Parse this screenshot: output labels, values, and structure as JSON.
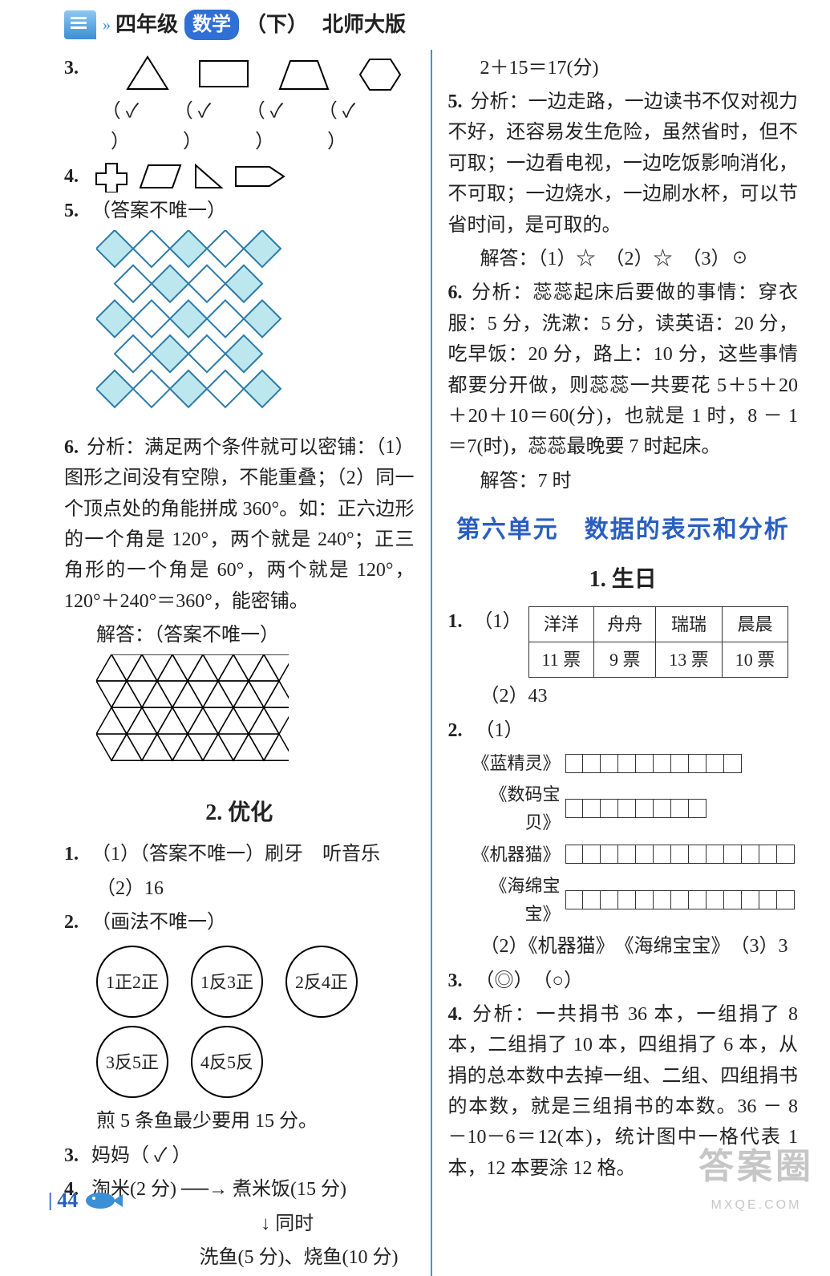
{
  "header": {
    "grade": "四年级",
    "subject": "数学",
    "volume": "（下）",
    "edition": "北师大版"
  },
  "left": {
    "q3": {
      "checks": [
        "（ ✓ ）",
        "（ ✓ ）",
        "（ ✓ ）",
        "（ ✓ ）"
      ]
    },
    "q5_note": "（答案不唯一）",
    "q5_pattern": {
      "rows": 5,
      "cols": 5,
      "cell": 46,
      "fill_color": "#bde7ee",
      "stroke": "#2b7aa8",
      "bg": "#ffffff"
    },
    "q6_analysis_label": "分析：",
    "q6_analysis": "满足两个条件就可以密铺：（1）图形之间没有空隙，不能重叠；（2）同一个顶点处的角能拼成 360°。如：正六边形的一个角是 120°，两个就是 240°；正三角形的一个角是 60°，两个就是 120°，120°＋240°＝360°，能密铺。",
    "q6_answer_label": "解答：（答案不唯一）",
    "tri_pattern": {
      "rows": 4,
      "cols": 6,
      "cell": 38,
      "stroke": "#000"
    },
    "sec2_title": "2. 优化",
    "sec2_1_1": "（1）（答案不唯一）刷牙　听音乐",
    "sec2_1_2": "（2）16",
    "sec2_2": "（画法不唯一）",
    "circles_top": [
      "1正2正",
      "1反3正",
      "2反4正"
    ],
    "circles_bottom": [
      "3反5正",
      "4反5反"
    ],
    "fry_line": "煎 5 条鱼最少要用 15 分。",
    "sec2_3": "妈妈（ ✓ ）",
    "sec2_4_line1": "淘米(2 分)  ──→  煮米饭(15 分)",
    "sec2_4_line2": "↓ 同时",
    "sec2_4_line3": "洗鱼(5 分)、烧鱼(10 分)"
  },
  "right": {
    "cont_line": "2＋15＝17(分)",
    "q5_analysis_label": "分析：",
    "q5_analysis": "一边走路，一边读书不仅对视力不好，还容易发生危险，虽然省时，但不可取；一边看电视，一边吃饭影响消化，不可取；一边烧水，一边刷水杯，可以节省时间，是可取的。",
    "q5_answer": "解答：（1）☆　（2）☆　（3）☉",
    "q6_analysis_label": "分析：",
    "q6_analysis": "蕊蕊起床后要做的事情：穿衣服：5 分，洗漱：5 分，读英语：20 分，吃早饭：20 分，路上：10 分，这些事情都要分开做，则蕊蕊一共要花 5＋5＋20＋20＋10＝60(分)，也就是 1 时，8 － 1 ＝7(时)，蕊蕊最晚要 7 时起床。",
    "q6_answer": "解答：7 时",
    "unit6_title": "第六单元　数据的表示和分析",
    "sec1_title": "1. 生日",
    "vote_table": {
      "headers": [
        "洋洋",
        "舟舟",
        "瑞瑞",
        "晨晨"
      ],
      "values": [
        "11 票",
        "9 票",
        "13 票",
        "10 票"
      ]
    },
    "sec1_1_2": "（2）43",
    "bars": [
      {
        "label": "《蓝精灵》",
        "count": 10
      },
      {
        "label": "《数码宝贝》",
        "count": 8
      },
      {
        "label": "《机器猫》",
        "count": 13
      },
      {
        "label": "《海绵宝宝》",
        "count": 13
      }
    ],
    "sec2_1_2b": "（2）《机器猫》　《海绵宝宝》　（3）3",
    "sec3": "（◎）　（○）",
    "q4_analysis_label": "分析：",
    "q4_analysis": "一共捐书 36 本，一组捐了 8 本，二组捐了 10 本，四组捐了 6 本，从捐的总本数中去掉一组、二组、四组捐书的本数，就是三组捐书的本数。36 － 8 －10－6＝12(本)，统计图中一格代表 1 本，12 本要涂 12 格。"
  },
  "page_number": "44",
  "watermark": {
    "big": "答案圈",
    "small": "MXQE.COM"
  }
}
